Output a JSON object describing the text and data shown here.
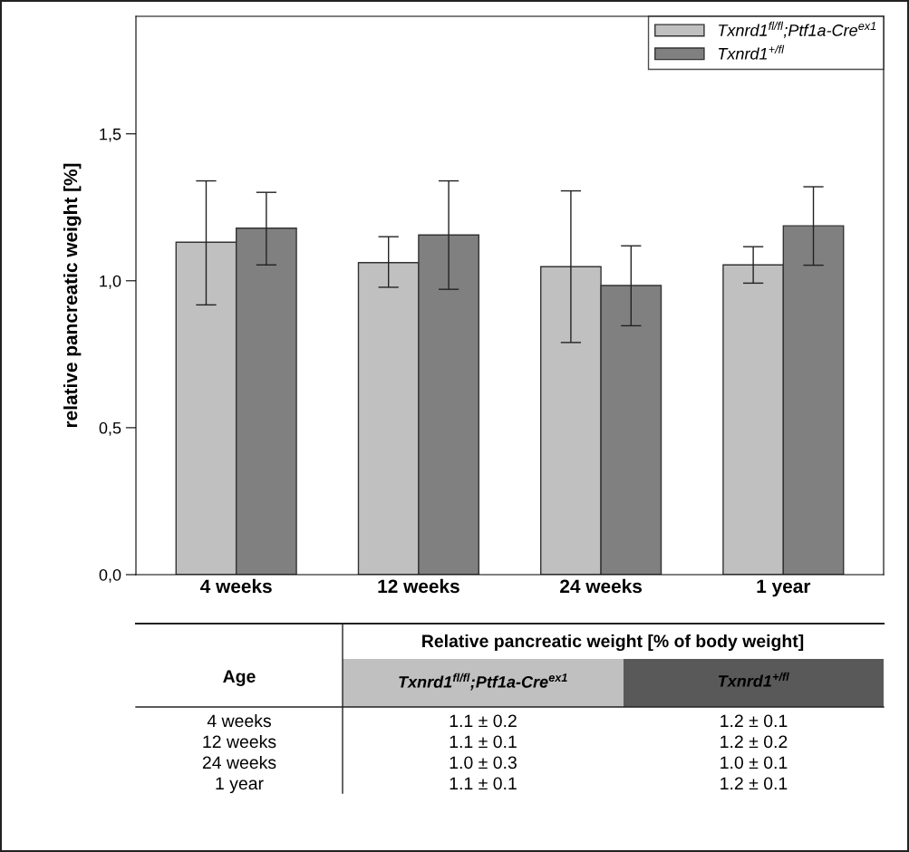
{
  "chart_data": {
    "type": "bar",
    "ylabel": "relative pancreatic weight [%]",
    "categories": [
      "4 weeks",
      "12 weeks",
      "24 weeks",
      "1 year"
    ],
    "series": [
      {
        "name": "Txnrd1$^{fl/fl}$;Ptf1a-Cre$^{ex1}$",
        "color": "#c0c0c0",
        "values": [
          1.131,
          1.062,
          1.048,
          1.054
        ],
        "errors": [
          [
            0.918,
            1.34
          ],
          [
            0.978,
            1.15
          ],
          [
            0.79,
            1.306
          ],
          [
            0.992,
            1.116
          ]
        ]
      },
      {
        "name": "Txnrd1$^{+/fl}$",
        "color": "#808080",
        "values": [
          1.179,
          1.156,
          0.984,
          1.187
        ],
        "errors": [
          [
            1.054,
            1.301
          ],
          [
            0.971,
            1.34
          ],
          [
            0.847,
            1.119
          ],
          [
            1.053,
            1.32
          ]
        ]
      }
    ],
    "ylim": [
      0,
      1.9
    ],
    "yticks": [
      {
        "value": 0,
        "label": "0,0"
      },
      {
        "value": 0.5,
        "label": "0,5"
      },
      {
        "value": 1.0,
        "label": "1,0"
      },
      {
        "value": 1.5,
        "label": "1,5"
      }
    ],
    "legend": "top right",
    "grid": false,
    "annotations": [
      "Age",
      "Relative pancreatic weight [% of body weight]",
      "1.1 ± 0.2",
      "1.2 ± 0.1",
      "1.1 ± 0.1",
      "1.2 ± 0.2",
      "1.0 ± 0.3",
      "1.0 ± 0.1",
      "1.1 ± 0.1",
      "1.2 ± 0.1"
    ]
  }
}
